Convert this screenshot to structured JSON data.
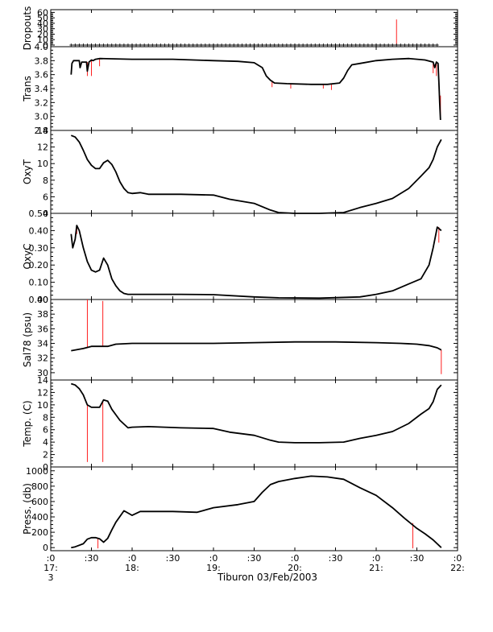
{
  "chart_data": {
    "type": "line",
    "x_axis": {
      "ticks": [
        {
          "t": 17.0,
          "label": ":0",
          "sub": "17:",
          "sub2": "3"
        },
        {
          "t": 17.5,
          "label": ":30"
        },
        {
          "t": 18.0,
          "label": ":0",
          "sub": "18:"
        },
        {
          "t": 18.5,
          "label": ":30"
        },
        {
          "t": 19.0,
          "label": ":0",
          "sub": "19:"
        },
        {
          "t": 19.5,
          "label": ":30"
        },
        {
          "t": 20.0,
          "label": ":0",
          "sub": "20:"
        },
        {
          "t": 20.5,
          "label": ":30"
        },
        {
          "t": 21.0,
          "label": ":0",
          "sub": "21:"
        },
        {
          "t": 21.5,
          "label": ":30"
        },
        {
          "t": 22.0,
          "label": ":0",
          "sub": "22:"
        }
      ],
      "range": [
        17.0,
        22.0
      ],
      "caption": "Tiburon 03/Feb/2003"
    },
    "panels": [
      {
        "ylabel": "Dropouts",
        "ylim": [
          -3,
          65
        ],
        "yticks": [
          0,
          10,
          20,
          30,
          40,
          50,
          60
        ],
        "marker": "plus",
        "series": [
          [
            17.25,
            0
          ],
          [
            21.75,
            0
          ]
        ],
        "spikes": [
          {
            "t": 21.25,
            "from": 0,
            "to": 47
          }
        ]
      },
      {
        "ylabel": "Trans",
        "ylim": [
          2.8,
          4.0
        ],
        "yticks": [
          2.8,
          3.0,
          3.2,
          3.4,
          3.6,
          3.8,
          4.0
        ],
        "tick_format": 1,
        "series": [
          [
            17.25,
            3.6
          ],
          [
            17.26,
            3.76
          ],
          [
            17.28,
            3.8
          ],
          [
            17.35,
            3.8
          ],
          [
            17.36,
            3.7
          ],
          [
            17.38,
            3.78
          ],
          [
            17.44,
            3.78
          ],
          [
            17.45,
            3.65
          ],
          [
            17.47,
            3.78
          ],
          [
            17.5,
            3.81
          ],
          [
            17.52,
            3.8
          ],
          [
            17.55,
            3.82
          ],
          [
            17.6,
            3.83
          ],
          [
            18.0,
            3.82
          ],
          [
            18.5,
            3.82
          ],
          [
            19.0,
            3.8
          ],
          [
            19.3,
            3.79
          ],
          [
            19.5,
            3.77
          ],
          [
            19.6,
            3.7
          ],
          [
            19.65,
            3.58
          ],
          [
            19.7,
            3.52
          ],
          [
            19.75,
            3.48
          ],
          [
            19.9,
            3.47
          ],
          [
            20.2,
            3.46
          ],
          [
            20.4,
            3.46
          ],
          [
            20.55,
            3.48
          ],
          [
            20.6,
            3.55
          ],
          [
            20.65,
            3.66
          ],
          [
            20.7,
            3.74
          ],
          [
            20.8,
            3.76
          ],
          [
            21.0,
            3.8
          ],
          [
            21.2,
            3.82
          ],
          [
            21.4,
            3.83
          ],
          [
            21.6,
            3.81
          ],
          [
            21.7,
            3.78
          ],
          [
            21.72,
            3.7
          ],
          [
            21.74,
            3.78
          ],
          [
            21.76,
            3.76
          ],
          [
            21.77,
            3.5
          ],
          [
            21.78,
            3.2
          ],
          [
            21.79,
            2.95
          ]
        ],
        "spikes": [
          {
            "t": 17.45,
            "from": 3.78,
            "to": 3.58
          },
          {
            "t": 17.5,
            "from": 3.8,
            "to": 3.58
          },
          {
            "t": 17.6,
            "from": 3.82,
            "to": 3.72
          },
          {
            "t": 19.72,
            "from": 3.5,
            "to": 3.42
          },
          {
            "t": 19.95,
            "from": 3.47,
            "to": 3.4
          },
          {
            "t": 20.35,
            "from": 3.46,
            "to": 3.4
          },
          {
            "t": 20.45,
            "from": 3.46,
            "to": 3.38
          },
          {
            "t": 21.7,
            "from": 3.78,
            "to": 3.62
          },
          {
            "t": 21.74,
            "from": 3.76,
            "to": 3.58
          },
          {
            "t": 21.79,
            "from": 3.3,
            "to": 2.95
          }
        ]
      },
      {
        "ylabel": "OxyT",
        "ylim": [
          4,
          14
        ],
        "yticks": [
          4,
          6,
          8,
          10,
          12,
          14
        ],
        "series": [
          [
            17.25,
            13.4
          ],
          [
            17.3,
            13.2
          ],
          [
            17.35,
            12.6
          ],
          [
            17.4,
            11.6
          ],
          [
            17.45,
            10.5
          ],
          [
            17.5,
            9.8
          ],
          [
            17.55,
            9.4
          ],
          [
            17.6,
            9.4
          ],
          [
            17.65,
            10.1
          ],
          [
            17.7,
            10.4
          ],
          [
            17.75,
            9.9
          ],
          [
            17.8,
            9.0
          ],
          [
            17.85,
            7.8
          ],
          [
            17.9,
            7.0
          ],
          [
            17.95,
            6.5
          ],
          [
            18.0,
            6.4
          ],
          [
            18.1,
            6.5
          ],
          [
            18.2,
            6.3
          ],
          [
            18.6,
            6.3
          ],
          [
            19.0,
            6.2
          ],
          [
            19.2,
            5.7
          ],
          [
            19.5,
            5.2
          ],
          [
            19.7,
            4.4
          ],
          [
            19.8,
            4.1
          ],
          [
            20.0,
            4.0
          ],
          [
            20.3,
            4.0
          ],
          [
            20.6,
            4.1
          ],
          [
            20.8,
            4.7
          ],
          [
            21.0,
            5.2
          ],
          [
            21.2,
            5.8
          ],
          [
            21.4,
            7.0
          ],
          [
            21.55,
            8.5
          ],
          [
            21.65,
            9.5
          ],
          [
            21.7,
            10.5
          ],
          [
            21.75,
            12.0
          ],
          [
            21.8,
            12.9
          ]
        ],
        "spikes": []
      },
      {
        "ylabel": "OxyC",
        "ylim": [
          0.0,
          0.5
        ],
        "yticks": [
          0.0,
          0.1,
          0.2,
          0.3,
          0.4,
          0.5
        ],
        "tick_format": 2,
        "series": [
          [
            17.25,
            0.38
          ],
          [
            17.27,
            0.3
          ],
          [
            17.3,
            0.35
          ],
          [
            17.32,
            0.43
          ],
          [
            17.35,
            0.4
          ],
          [
            17.4,
            0.3
          ],
          [
            17.45,
            0.22
          ],
          [
            17.5,
            0.17
          ],
          [
            17.55,
            0.16
          ],
          [
            17.6,
            0.17
          ],
          [
            17.65,
            0.24
          ],
          [
            17.7,
            0.2
          ],
          [
            17.75,
            0.12
          ],
          [
            17.8,
            0.08
          ],
          [
            17.85,
            0.05
          ],
          [
            17.9,
            0.035
          ],
          [
            17.95,
            0.03
          ],
          [
            18.2,
            0.03
          ],
          [
            18.6,
            0.03
          ],
          [
            19.0,
            0.028
          ],
          [
            19.5,
            0.015
          ],
          [
            19.8,
            0.01
          ],
          [
            20.3,
            0.008
          ],
          [
            20.8,
            0.015
          ],
          [
            21.0,
            0.03
          ],
          [
            21.2,
            0.05
          ],
          [
            21.4,
            0.09
          ],
          [
            21.55,
            0.12
          ],
          [
            21.65,
            0.2
          ],
          [
            21.7,
            0.3
          ],
          [
            21.75,
            0.42
          ],
          [
            21.8,
            0.4
          ]
        ],
        "spikes": [
          {
            "t": 17.32,
            "from": 0.43,
            "to": 0.38
          },
          {
            "t": 21.77,
            "from": 0.42,
            "to": 0.33
          }
        ]
      },
      {
        "ylabel": "Sal78 (psu)",
        "ylim": [
          29,
          40
        ],
        "yticks": [
          30,
          32,
          34,
          36,
          38,
          40
        ],
        "series": [
          [
            17.25,
            33.0
          ],
          [
            17.4,
            33.3
          ],
          [
            17.5,
            33.6
          ],
          [
            17.6,
            33.6
          ],
          [
            17.7,
            33.6
          ],
          [
            17.8,
            33.9
          ],
          [
            18.0,
            34.0
          ],
          [
            18.5,
            34.0
          ],
          [
            19.0,
            34.0
          ],
          [
            19.5,
            34.1
          ],
          [
            20.0,
            34.2
          ],
          [
            20.5,
            34.2
          ],
          [
            21.0,
            34.1
          ],
          [
            21.3,
            34.0
          ],
          [
            21.5,
            33.9
          ],
          [
            21.65,
            33.7
          ],
          [
            21.75,
            33.4
          ],
          [
            21.8,
            33.1
          ]
        ],
        "spikes": [
          {
            "t": 17.45,
            "from": 33.5,
            "to": 40.0
          },
          {
            "t": 17.64,
            "from": 33.6,
            "to": 39.8
          },
          {
            "t": 21.8,
            "from": 33.1,
            "to": 29.8
          }
        ]
      },
      {
        "ylabel": "Temp. (C)",
        "ylim": [
          0,
          14
        ],
        "yticks": [
          0,
          2,
          4,
          6,
          8,
          10,
          12,
          14
        ],
        "series": [
          [
            17.25,
            13.4
          ],
          [
            17.3,
            13.2
          ],
          [
            17.35,
            12.6
          ],
          [
            17.4,
            11.6
          ],
          [
            17.45,
            10.0
          ],
          [
            17.5,
            9.6
          ],
          [
            17.55,
            9.6
          ],
          [
            17.6,
            9.6
          ],
          [
            17.65,
            10.8
          ],
          [
            17.7,
            10.6
          ],
          [
            17.75,
            9.3
          ],
          [
            17.85,
            7.5
          ],
          [
            17.95,
            6.3
          ],
          [
            18.0,
            6.4
          ],
          [
            18.2,
            6.5
          ],
          [
            18.6,
            6.3
          ],
          [
            19.0,
            6.2
          ],
          [
            19.2,
            5.6
          ],
          [
            19.5,
            5.1
          ],
          [
            19.7,
            4.3
          ],
          [
            19.8,
            4.0
          ],
          [
            20.0,
            3.9
          ],
          [
            20.3,
            3.9
          ],
          [
            20.6,
            4.0
          ],
          [
            20.8,
            4.6
          ],
          [
            21.0,
            5.1
          ],
          [
            21.2,
            5.7
          ],
          [
            21.4,
            7.0
          ],
          [
            21.55,
            8.5
          ],
          [
            21.65,
            9.4
          ],
          [
            21.7,
            10.5
          ],
          [
            21.75,
            12.5
          ],
          [
            21.8,
            13.2
          ]
        ],
        "spikes": [
          {
            "t": 17.45,
            "from": 10.0,
            "to": 0.8
          },
          {
            "t": 17.64,
            "from": 10.5,
            "to": 0.8
          }
        ]
      },
      {
        "ylabel": "Press. (db)",
        "ylim": [
          -40,
          1050
        ],
        "yticks": [
          0,
          200,
          400,
          600,
          800,
          1000
        ],
        "series": [
          [
            17.25,
            0
          ],
          [
            17.3,
            10
          ],
          [
            17.4,
            50
          ],
          [
            17.45,
            110
          ],
          [
            17.5,
            130
          ],
          [
            17.55,
            130
          ],
          [
            17.6,
            115
          ],
          [
            17.65,
            70
          ],
          [
            17.7,
            120
          ],
          [
            17.75,
            230
          ],
          [
            17.8,
            330
          ],
          [
            17.9,
            480
          ],
          [
            18.0,
            420
          ],
          [
            18.1,
            470
          ],
          [
            18.5,
            470
          ],
          [
            18.8,
            460
          ],
          [
            19.0,
            520
          ],
          [
            19.3,
            560
          ],
          [
            19.5,
            600
          ],
          [
            19.6,
            720
          ],
          [
            19.7,
            820
          ],
          [
            19.8,
            860
          ],
          [
            20.0,
            900
          ],
          [
            20.2,
            930
          ],
          [
            20.4,
            920
          ],
          [
            20.6,
            890
          ],
          [
            20.8,
            780
          ],
          [
            21.0,
            680
          ],
          [
            21.2,
            520
          ],
          [
            21.35,
            380
          ],
          [
            21.5,
            250
          ],
          [
            21.6,
            180
          ],
          [
            21.7,
            100
          ],
          [
            21.8,
            0
          ]
        ],
        "spikes": [
          {
            "t": 17.58,
            "from": 120,
            "to": -10
          },
          {
            "t": 21.45,
            "from": 320,
            "to": -10
          }
        ]
      }
    ]
  }
}
